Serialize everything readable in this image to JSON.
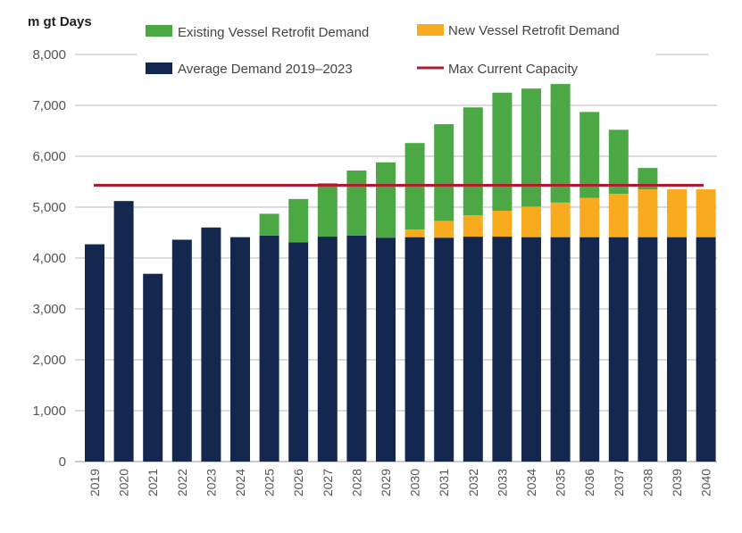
{
  "chart_data": {
    "type": "bar",
    "stacked": true,
    "title": "",
    "ylabel": "m gt Days",
    "xlabel": "",
    "ylim": [
      0,
      8000
    ],
    "yticks": [
      0,
      1000,
      2000,
      3000,
      4000,
      5000,
      6000,
      7000,
      8000
    ],
    "ytick_labels": [
      "0",
      "1,000",
      "2,000",
      "3,000",
      "4,000",
      "5,000",
      "6,000",
      "7,000",
      "8,000"
    ],
    "grid": true,
    "legend_position": "top",
    "categories": [
      "2019",
      "2020",
      "2021",
      "2022",
      "2023",
      "2024",
      "2025",
      "2026",
      "2027",
      "2028",
      "2029",
      "2030",
      "2031",
      "2032",
      "2033",
      "2034",
      "2035",
      "2036",
      "2037",
      "2038",
      "2039",
      "2040"
    ],
    "series": [
      {
        "name": "Average Demand 2019–2023",
        "color": "#14284f",
        "values": [
          4270,
          5120,
          3690,
          4360,
          4600,
          4410,
          4440,
          4310,
          4420,
          4440,
          4400,
          4410,
          4400,
          4420,
          4420,
          4410,
          4410,
          4410,
          4410,
          4410,
          4410,
          4410
        ]
      },
      {
        "name": "New Vessel Retrofit Demand",
        "color": "#f9ab1f",
        "values": [
          0,
          0,
          0,
          0,
          0,
          0,
          0,
          0,
          0,
          0,
          0,
          150,
          330,
          420,
          510,
          600,
          680,
          770,
          850,
          940,
          940,
          940
        ]
      },
      {
        "name": "Existing Vessel Retrofit Demand",
        "color": "#4ba845",
        "values": [
          0,
          0,
          0,
          0,
          0,
          0,
          430,
          850,
          1050,
          1280,
          1480,
          1700,
          1900,
          2120,
          2320,
          2320,
          2330,
          1690,
          1260,
          420,
          0,
          0
        ]
      }
    ],
    "lines": [
      {
        "name": "Max Current Capacity",
        "color": "#b01c2e",
        "value": 5430
      }
    ],
    "legend": [
      {
        "label": "Existing Vessel Retrofit Demand",
        "kind": "swatch",
        "color": "#4ba845"
      },
      {
        "label": "New Vessel Retrofit Demand",
        "kind": "swatch",
        "color": "#f9ab1f"
      },
      {
        "label": "Average Demand 2019–2023",
        "kind": "swatch",
        "color": "#14284f"
      },
      {
        "label": "Max Current Capacity",
        "kind": "line",
        "color": "#b01c2e"
      }
    ]
  }
}
